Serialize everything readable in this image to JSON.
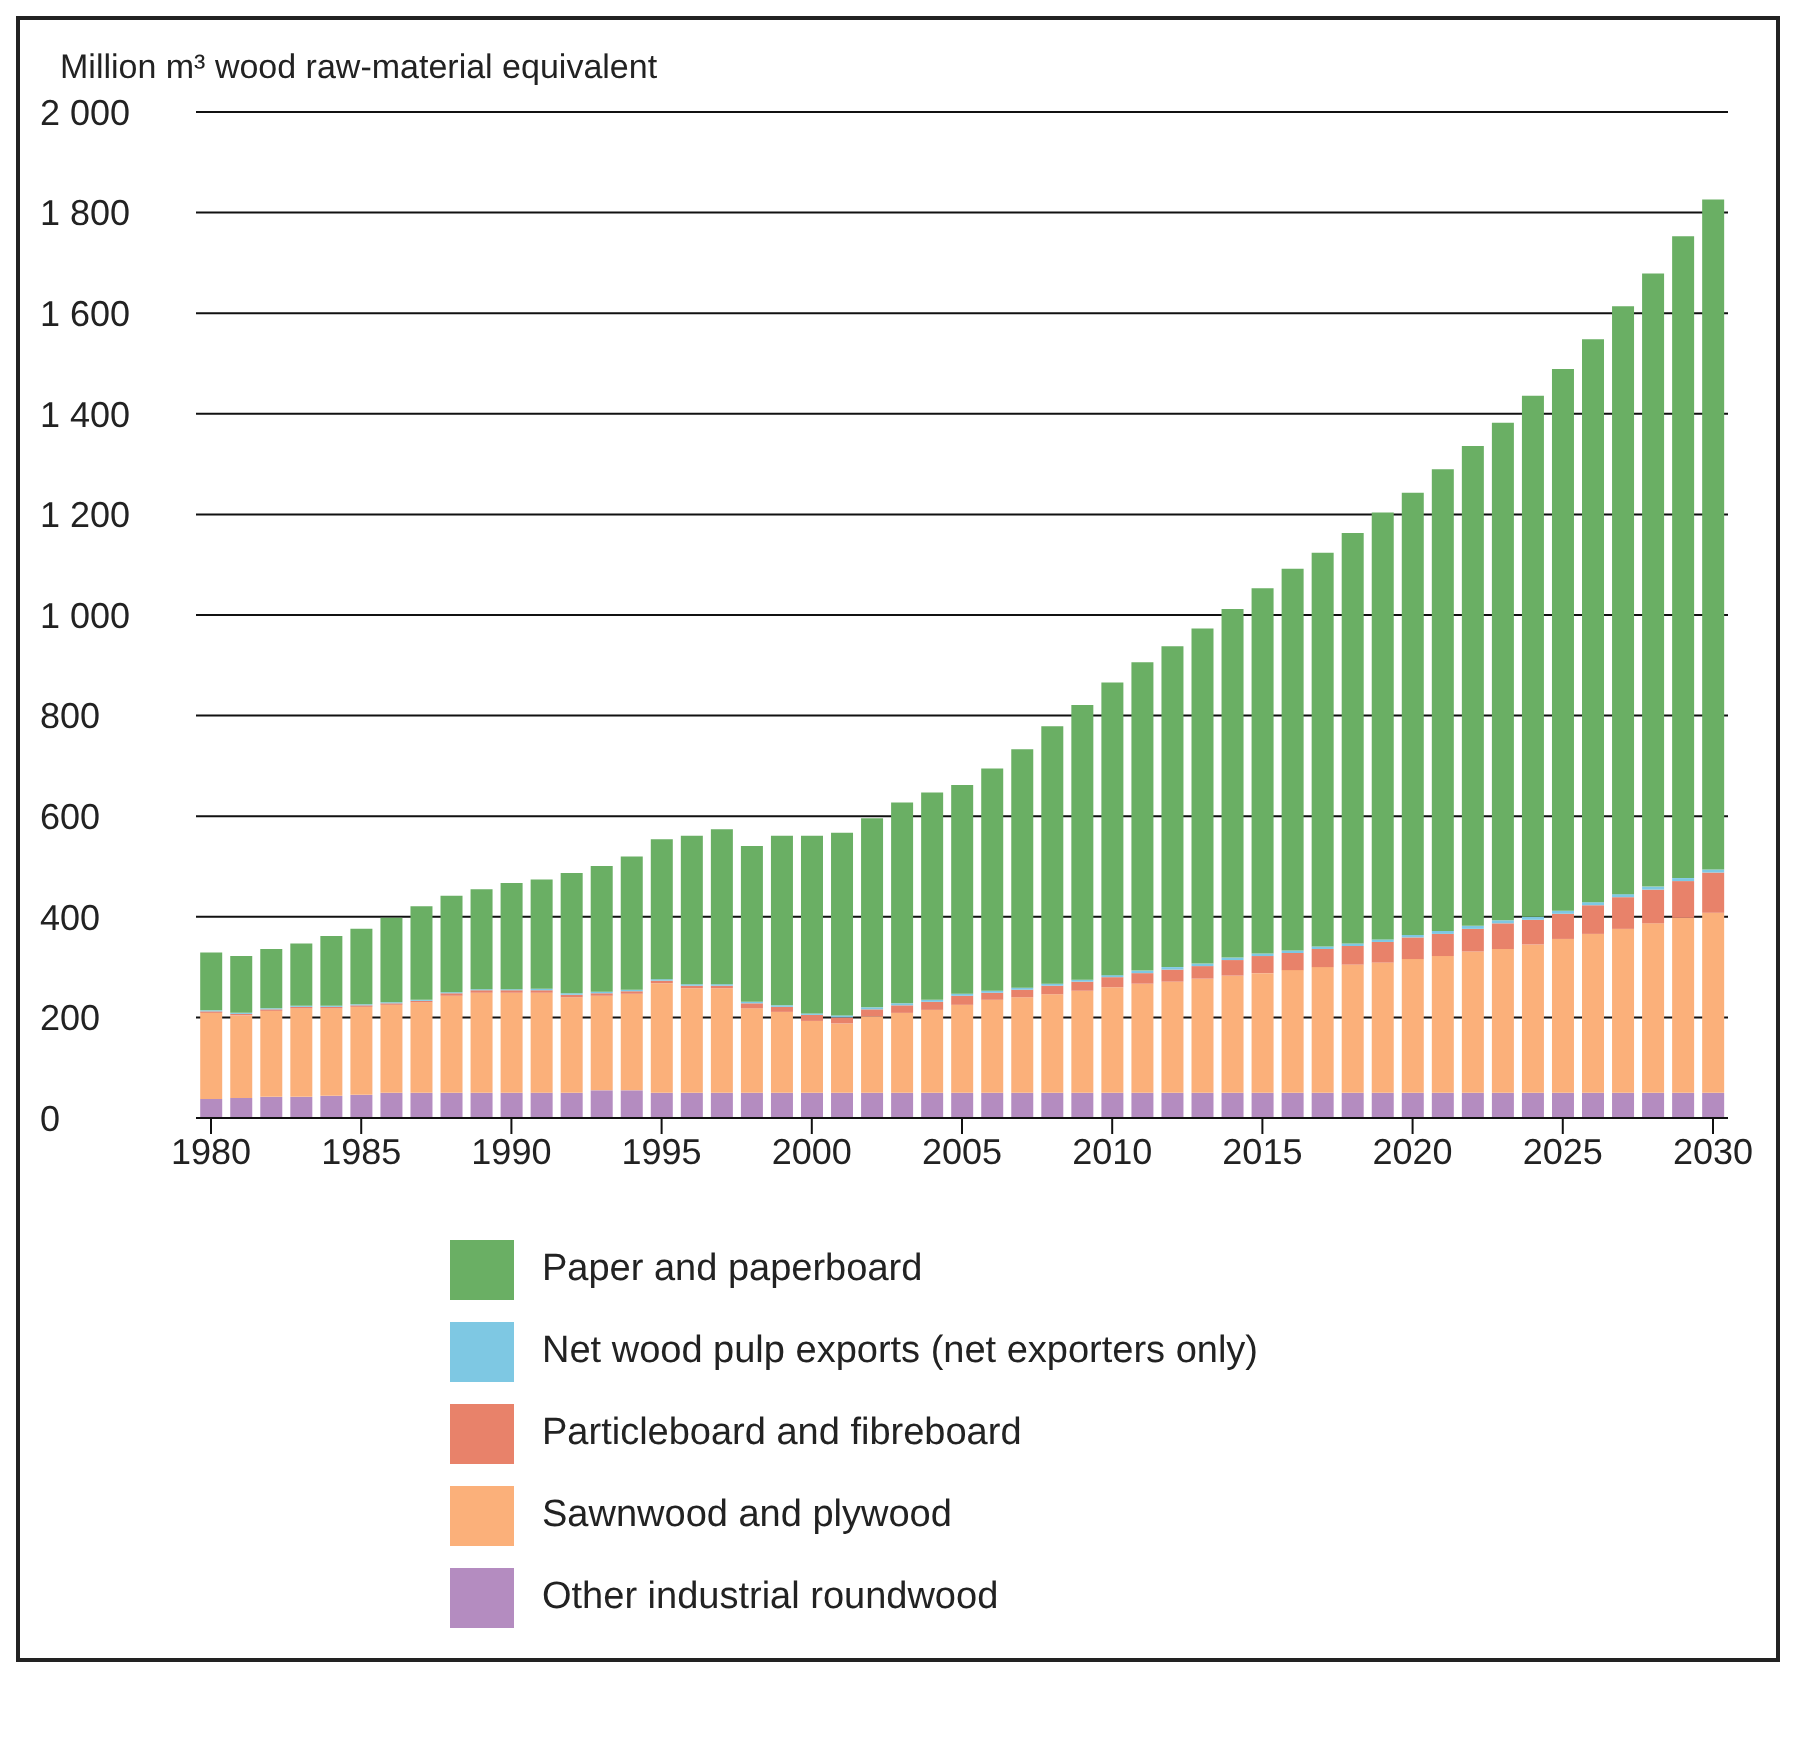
{
  "chart_data": {
    "type": "bar",
    "stacked": true,
    "ylabel": "Million m³ wood raw-material equivalent",
    "categories": [
      "1980",
      null,
      null,
      null,
      null,
      "1985",
      null,
      null,
      null,
      null,
      "1990",
      null,
      null,
      null,
      null,
      "1995",
      null,
      null,
      null,
      null,
      "2000",
      null,
      null,
      null,
      null,
      "2005",
      null,
      null,
      null,
      null,
      "2010",
      null,
      null,
      null,
      null,
      "2015",
      null,
      null,
      null,
      null,
      "2020",
      null,
      null,
      null,
      null,
      "2025",
      null,
      null,
      null,
      null,
      "2030"
    ],
    "series": [
      {
        "name": "Other industrial roundwood",
        "color": "#b48cc0",
        "values": [
          38,
          40,
          42,
          42,
          44,
          46,
          50,
          50,
          50,
          50,
          50,
          50,
          50,
          55,
          55,
          50,
          50,
          50,
          50,
          50,
          50,
          50,
          50,
          50,
          50,
          50,
          50,
          50,
          50,
          50,
          50,
          50,
          50,
          50,
          50,
          50,
          50,
          50,
          50,
          50,
          50,
          50,
          50,
          50,
          50,
          50,
          50,
          50,
          50,
          50,
          50
        ]
      },
      {
        "name": "Sawnwood and plywood",
        "color": "#fbb07a",
        "values": [
          171,
          164,
          171,
          176,
          174,
          175,
          175,
          180,
          193,
          199,
          199,
          199,
          190,
          188,
          192,
          218,
          208,
          208,
          168,
          161,
          143,
          138,
          152,
          159,
          165,
          175,
          185,
          190,
          196,
          203,
          210,
          217,
          221,
          227,
          233,
          238,
          244,
          250,
          255,
          259,
          266,
          272,
          281,
          286,
          295,
          306,
          316,
          326,
          337,
          348,
          358
        ]
      },
      {
        "name": "Particleboard and fibreboard",
        "color": "#e8826a",
        "values": [
          3,
          3,
          3,
          3,
          3,
          3,
          3,
          3,
          5,
          5,
          5,
          5,
          5,
          5,
          5,
          5,
          5,
          5,
          10,
          10,
          12,
          12,
          14,
          15,
          16,
          18,
          14,
          15,
          17,
          18,
          20,
          21,
          24,
          25,
          31,
          34,
          34,
          36,
          37,
          41,
          43,
          44,
          45,
          51,
          49,
          50,
          57,
          63,
          67,
          73,
          80
        ]
      },
      {
        "name": "Net wood pulp exports (net exporters only)",
        "color": "#7ec8e3",
        "values": [
          2,
          2,
          2,
          2,
          2,
          2,
          2,
          2,
          2,
          2,
          2,
          3,
          3,
          3,
          3,
          3,
          3,
          3,
          3,
          3,
          3,
          4,
          4,
          4,
          4,
          4,
          4,
          4,
          4,
          4,
          4,
          5,
          5,
          5,
          5,
          5,
          5,
          5,
          5,
          5,
          5,
          6,
          6,
          6,
          6,
          6,
          6,
          6,
          6,
          6,
          6
        ]
      },
      {
        "name": "Paper and paperboard",
        "color": "#6aaf64",
        "values": [
          115,
          113,
          118,
          124,
          139,
          150,
          168,
          186,
          192,
          199,
          211,
          217,
          239,
          250,
          265,
          278,
          295,
          308,
          310,
          337,
          353,
          363,
          376,
          399,
          412,
          415,
          442,
          474,
          512,
          546,
          582,
          613,
          638,
          666,
          693,
          726,
          759,
          783,
          816,
          849,
          879,
          918,
          954,
          989,
          1036,
          1077,
          1119,
          1169,
          1219,
          1276,
          1332
        ]
      }
    ],
    "ylim": [
      0,
      2000
    ],
    "yticks": [
      0,
      200,
      400,
      600,
      800,
      {
        "value": 1000,
        "label": "1 000"
      },
      {
        "value": 1200,
        "label": "1 200"
      },
      {
        "value": 1400,
        "label": "1 400"
      },
      {
        "value": 1600,
        "label": "1 600"
      },
      {
        "value": 1800,
        "label": "1 800"
      },
      {
        "value": 2000,
        "label": "2 000"
      }
    ],
    "grid": "y",
    "legend": "bottom"
  }
}
